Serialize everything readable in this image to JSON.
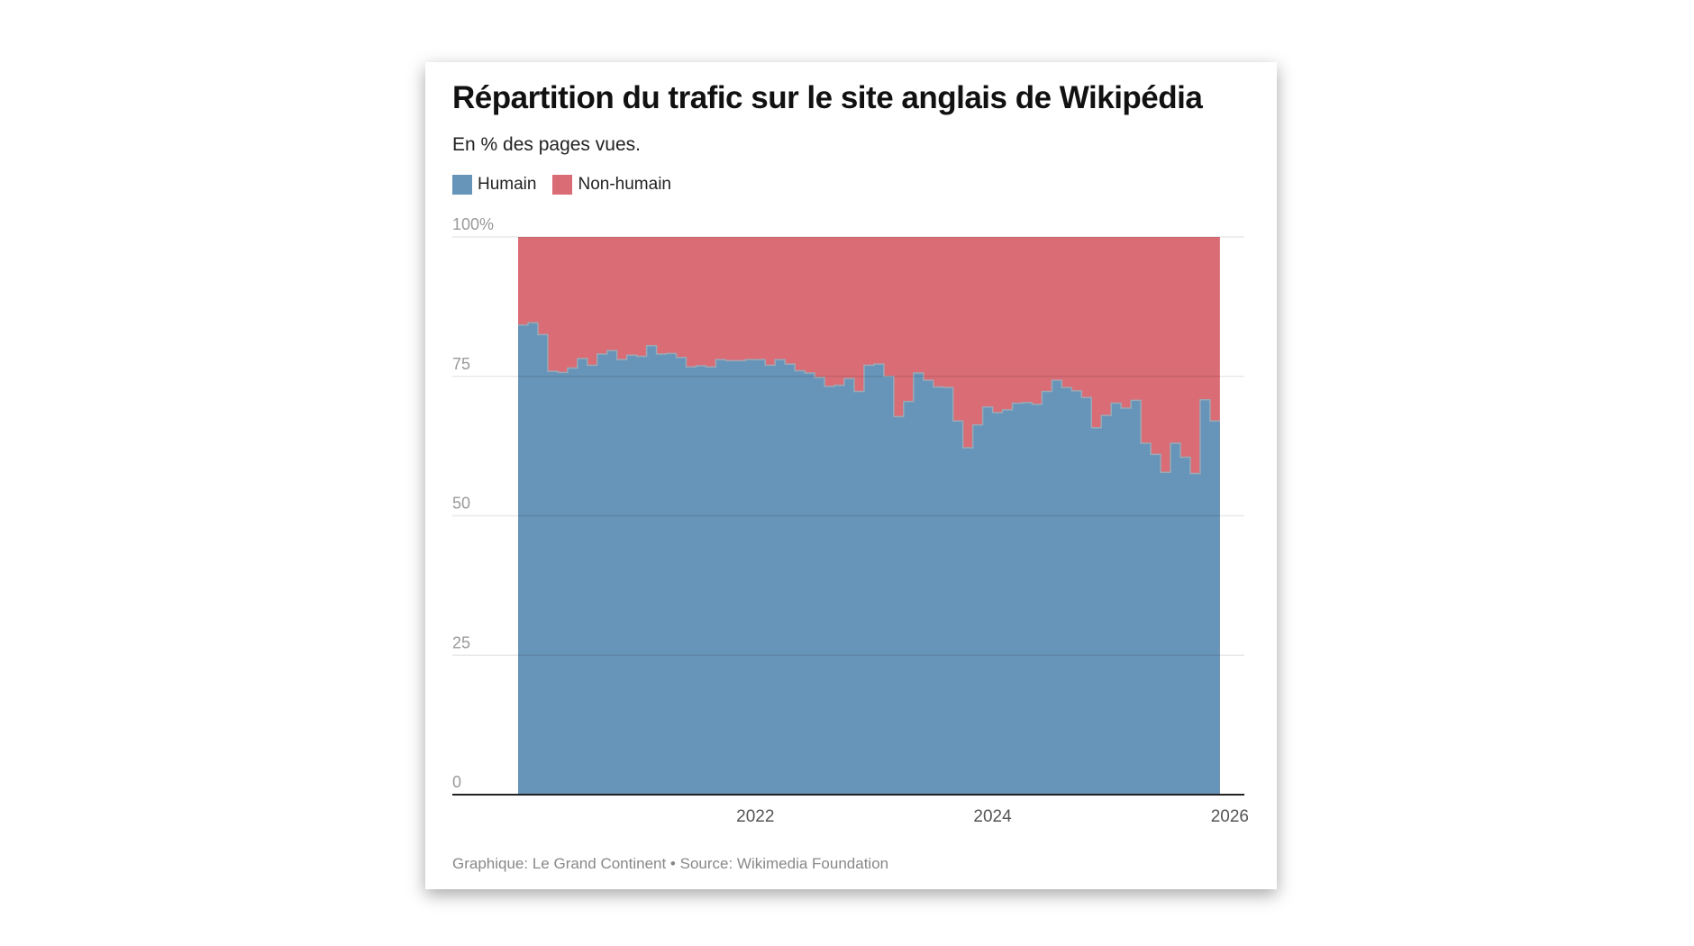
{
  "chart_data": {
    "type": "area",
    "stacked": true,
    "step": true,
    "title": "Répartition du trafic sur le site anglais de Wikipédia",
    "subtitle": "En % des pages vues.",
    "source": "Graphique: Le Grand Continent • Source: Wikimedia Foundation",
    "start_month": "2020-01",
    "end_month": "2025-11",
    "x_ticks": [
      "2022",
      "2024",
      "2026"
    ],
    "y_ticks": [
      "0",
      "25",
      "50",
      "75",
      "100%"
    ],
    "ylim": [
      0,
      100
    ],
    "xlim": [
      "2019-09",
      "2026-01"
    ],
    "grid": true,
    "legend_position": "top-left",
    "series": [
      {
        "name": "Humain",
        "color": "#6794b9",
        "values": [
          84.2,
          84.6,
          82.5,
          75.9,
          75.7,
          76.5,
          78.2,
          77,
          79,
          79.6,
          78,
          78.8,
          78.6,
          80.5,
          79,
          79.1,
          78.4,
          76.7,
          76.9,
          76.7,
          78,
          77.8,
          77.8,
          78,
          78,
          77,
          78,
          77.2,
          76,
          75.6,
          74.8,
          73.2,
          73.4,
          74.6,
          72.3,
          77,
          77.2,
          75,
          67.8,
          70.5,
          75.6,
          74.3,
          73.1,
          73,
          67,
          62.2,
          66.3,
          69.5,
          68.5,
          69,
          70.2,
          70.3,
          70,
          72.3,
          74.3,
          73,
          72.4,
          71.2,
          65.8,
          68,
          70.2,
          69.3,
          70.7,
          63,
          61,
          57.8,
          63,
          60.5,
          57.6,
          70.8,
          67
        ]
      },
      {
        "name": "Non-humain",
        "color": "#d96c75",
        "values": "remainder to 100%"
      }
    ]
  }
}
